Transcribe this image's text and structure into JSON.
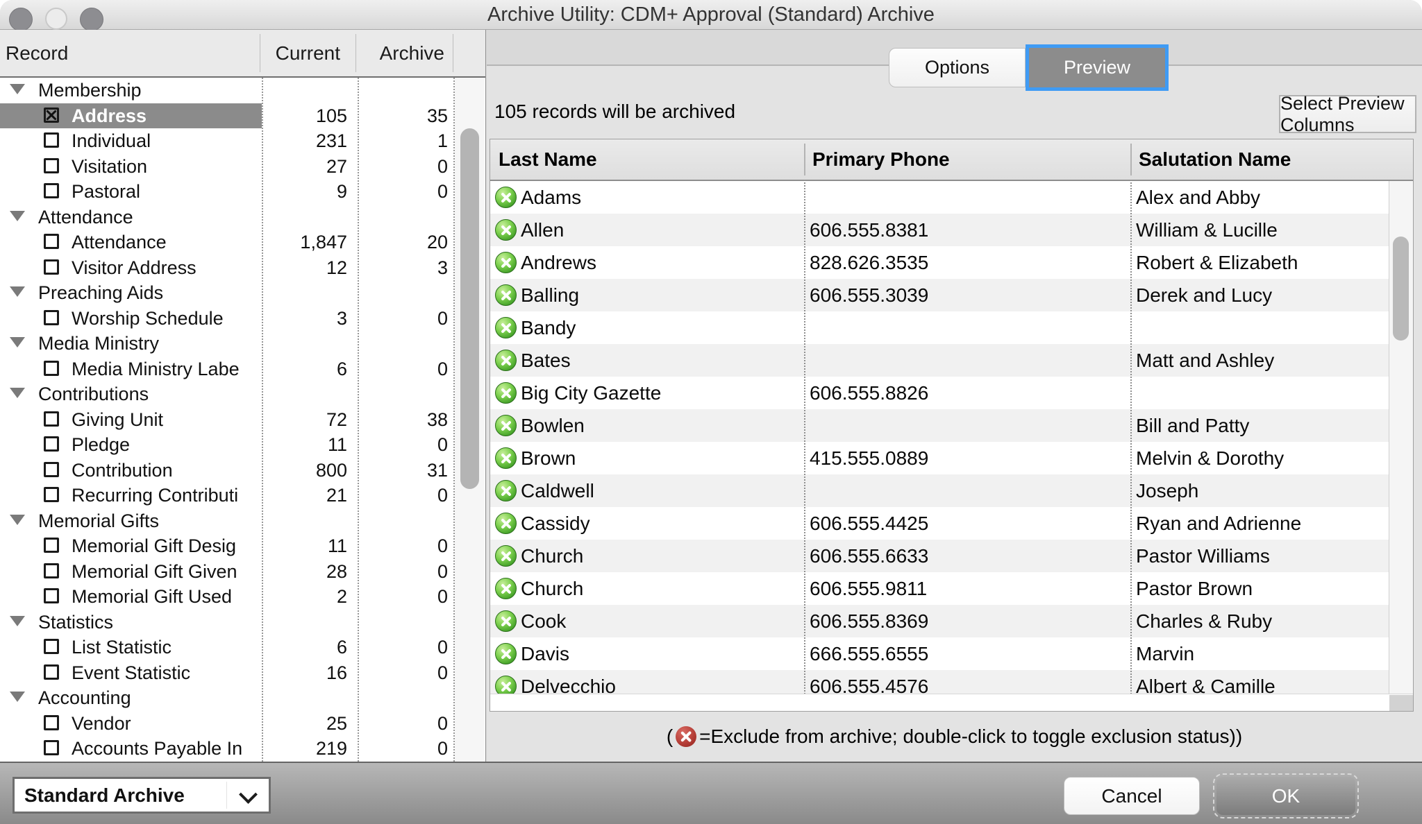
{
  "window": {
    "title": "Archive Utility: CDM+ Approval (Standard) Archive"
  },
  "left_panel": {
    "header": {
      "record": "Record",
      "current": "Current",
      "archive": "Archive"
    },
    "rows": [
      {
        "kind": "category",
        "label": "Membership"
      },
      {
        "kind": "item",
        "label": "Address",
        "current": "105",
        "archive": "35",
        "checked": true,
        "selected": true
      },
      {
        "kind": "item",
        "label": "Individual",
        "current": "231",
        "archive": "1"
      },
      {
        "kind": "item",
        "label": "Visitation",
        "current": "27",
        "archive": "0"
      },
      {
        "kind": "item",
        "label": "Pastoral",
        "current": "9",
        "archive": "0"
      },
      {
        "kind": "category",
        "label": "Attendance"
      },
      {
        "kind": "item",
        "label": "Attendance",
        "current": "1,847",
        "archive": "20"
      },
      {
        "kind": "item",
        "label": "Visitor Address",
        "current": "12",
        "archive": "3"
      },
      {
        "kind": "category",
        "label": "Preaching Aids"
      },
      {
        "kind": "item",
        "label": "Worship Schedule",
        "current": "3",
        "archive": "0"
      },
      {
        "kind": "category",
        "label": "Media Ministry"
      },
      {
        "kind": "item",
        "label": "Media Ministry Labe",
        "current": "6",
        "archive": "0"
      },
      {
        "kind": "category",
        "label": "Contributions"
      },
      {
        "kind": "item",
        "label": "Giving Unit",
        "current": "72",
        "archive": "38"
      },
      {
        "kind": "item",
        "label": "Pledge",
        "current": "11",
        "archive": "0"
      },
      {
        "kind": "item",
        "label": "Contribution",
        "current": "800",
        "archive": "31"
      },
      {
        "kind": "item",
        "label": "Recurring Contributi",
        "current": "21",
        "archive": "0"
      },
      {
        "kind": "category",
        "label": "Memorial Gifts"
      },
      {
        "kind": "item",
        "label": "Memorial Gift Desig",
        "current": "11",
        "archive": "0"
      },
      {
        "kind": "item",
        "label": "Memorial Gift Given",
        "current": "28",
        "archive": "0"
      },
      {
        "kind": "item",
        "label": "Memorial Gift Used",
        "current": "2",
        "archive": "0"
      },
      {
        "kind": "category",
        "label": "Statistics"
      },
      {
        "kind": "item",
        "label": "List Statistic",
        "current": "6",
        "archive": "0"
      },
      {
        "kind": "item",
        "label": "Event Statistic",
        "current": "16",
        "archive": "0"
      },
      {
        "kind": "category",
        "label": "Accounting"
      },
      {
        "kind": "item",
        "label": "Vendor",
        "current": "25",
        "archive": "0"
      },
      {
        "kind": "item",
        "label": "Accounts Payable In",
        "current": "219",
        "archive": "0"
      }
    ]
  },
  "tabs": {
    "options": "Options",
    "preview": "Preview"
  },
  "preview": {
    "summary": "105 records will be archived",
    "select_columns_button": "Select Preview Columns",
    "table": {
      "columns": [
        "Last Name",
        "Primary Phone",
        "Salutation Name"
      ],
      "rows": [
        [
          "Adams",
          "",
          "Alex and Abby"
        ],
        [
          "Allen",
          "606.555.8381",
          "William & Lucille"
        ],
        [
          "Andrews",
          "828.626.3535",
          "Robert & Elizabeth"
        ],
        [
          "Balling",
          "606.555.3039",
          "Derek and Lucy"
        ],
        [
          "Bandy",
          "",
          ""
        ],
        [
          "Bates",
          "",
          "Matt and Ashley"
        ],
        [
          "Big City Gazette",
          "606.555.8826",
          ""
        ],
        [
          "Bowlen",
          "",
          "Bill and Patty"
        ],
        [
          "Brown",
          "415.555.0889",
          "Melvin & Dorothy"
        ],
        [
          "Caldwell",
          "",
          "Joseph"
        ],
        [
          "Cassidy",
          "606.555.4425",
          "Ryan and Adrienne"
        ],
        [
          "Church",
          "606.555.6633",
          "Pastor Williams"
        ],
        [
          "Church",
          "606.555.9811",
          "Pastor Brown"
        ],
        [
          "Cook",
          "606.555.8369",
          "Charles & Ruby"
        ],
        [
          "Davis",
          "666.555.6555",
          "Marvin"
        ],
        [
          "Delvecchio",
          "606.555.4576",
          "Albert & Camille"
        ]
      ]
    },
    "footnote": {
      "open": "(",
      "close": "=Exclude from archive; double-click to toggle exclusion status))"
    }
  },
  "bottom_bar": {
    "archive_type": "Standard Archive",
    "cancel": "Cancel",
    "ok": "OK"
  },
  "colors": {
    "selection_gray": "#8b8b8b",
    "tab_focus_blue": "#3f9bf4",
    "exclude_green": "#49a52c",
    "exclude_red": "#b23b34"
  }
}
